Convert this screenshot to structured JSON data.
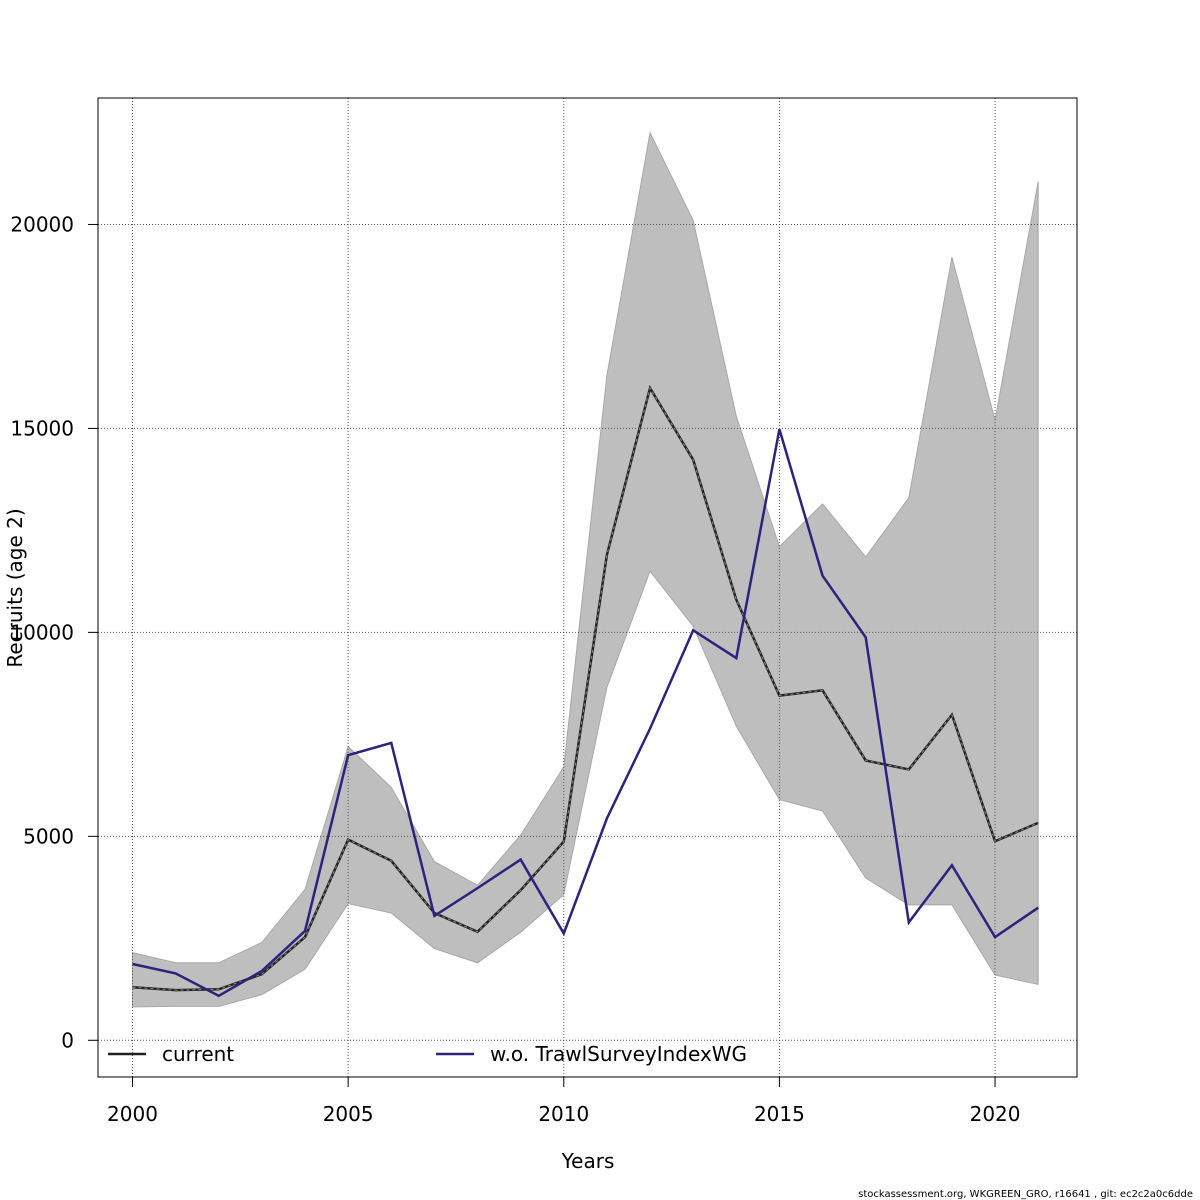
{
  "chart_data": {
    "type": "line",
    "xlabel": "Years",
    "ylabel": "Recruits (age 2)",
    "xlim": [
      1999.2,
      2021.9
    ],
    "ylim": [
      -900,
      23100
    ],
    "x_ticks": [
      2000,
      2005,
      2010,
      2015,
      2020
    ],
    "x_tick_labels": [
      "2000",
      "2005",
      "2010",
      "2015",
      "2020"
    ],
    "y_ticks": [
      0,
      5000,
      10000,
      15000,
      20000
    ],
    "y_tick_labels": [
      "0",
      "5000",
      "10000",
      "15000",
      "20000"
    ],
    "grid": true,
    "legend_position": "bottom",
    "x": [
      2000,
      2001,
      2002,
      2003,
      2004,
      2005,
      2006,
      2007,
      2008,
      2009,
      2010,
      2011,
      2012,
      2013,
      2014,
      2015,
      2016,
      2017,
      2018,
      2019,
      2020,
      2021
    ],
    "confidence_band": {
      "color": "#bebebe",
      "lower": [
        820,
        830,
        830,
        1120,
        1740,
        3350,
        3120,
        2250,
        1900,
        2650,
        3570,
        8650,
        11500,
        10150,
        7700,
        5900,
        5620,
        3980,
        3320,
        3320,
        1600,
        1370
      ],
      "upper": [
        2150,
        1900,
        1900,
        2400,
        3700,
        7200,
        6200,
        4380,
        3800,
        5030,
        6700,
        16300,
        22250,
        20100,
        15300,
        12100,
        13150,
        11850,
        13300,
        19200,
        15200,
        21050
      ]
    },
    "series": [
      {
        "name": "current",
        "color": "#222222",
        "style": "dashed",
        "values": [
          1300,
          1230,
          1250,
          1620,
          2530,
          4920,
          4400,
          3120,
          2660,
          3680,
          4870,
          11900,
          15990,
          14230,
          10800,
          8450,
          8580,
          6860,
          6640,
          7980,
          4880,
          5330
        ]
      },
      {
        "name": "w.o. TrawlSurveyIndexWG",
        "color": "#2b237c",
        "style": "solid",
        "values": [
          1870,
          1640,
          1090,
          1700,
          2680,
          6990,
          7290,
          3050,
          3730,
          4430,
          2620,
          5440,
          7640,
          10050,
          9370,
          14980,
          11390,
          9880,
          2890,
          4290,
          2530,
          3250
        ]
      }
    ]
  },
  "footer": {
    "credit": "stockassessment.org, WKGREEN_GRO, r16641 , git: ec2c2a0c6dde"
  }
}
